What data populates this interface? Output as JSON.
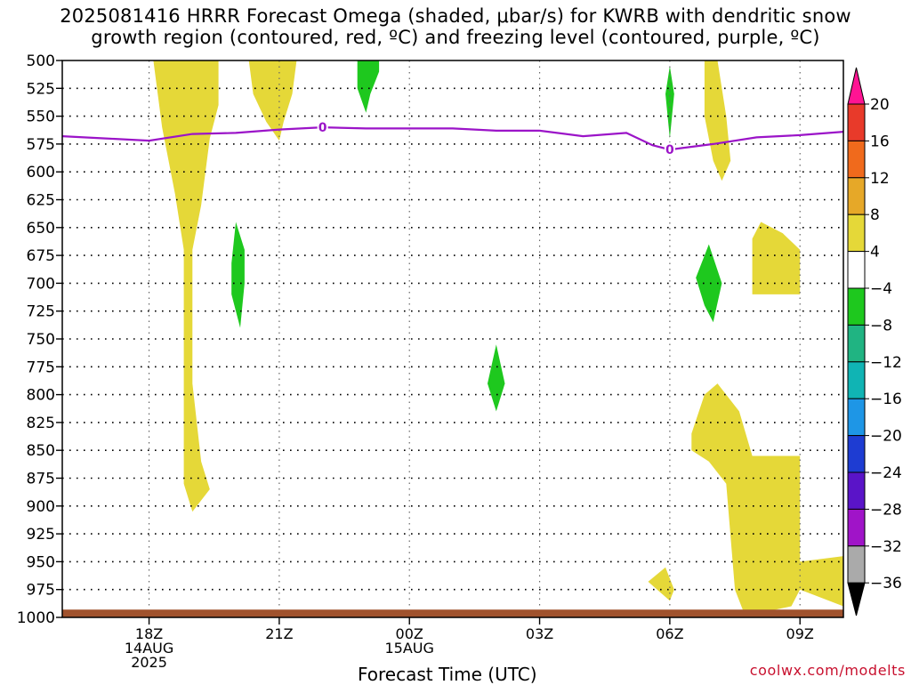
{
  "title": {
    "line1": "2025081416 HRRR Forecast Omega (shaded, μbar/s) for KWRB with dendritic snow",
    "line2": "growth region (contoured, red, ºC) and freezing level (contoured, purple, ºC)"
  },
  "xaxis_title": "Forecast Time (UTC)",
  "credit": "coolwx.com/modelts",
  "chart_data": {
    "type": "heatmap",
    "x_range_hours_utc_from_14aug_00z": [
      16.0,
      34.0
    ],
    "y_range_mb": [
      1000,
      500
    ],
    "y_ticks": [
      500,
      525,
      550,
      575,
      600,
      625,
      650,
      675,
      700,
      725,
      750,
      775,
      800,
      825,
      850,
      875,
      900,
      925,
      950,
      975,
      1000
    ],
    "x_ticks": [
      {
        "hour": 18,
        "label": [
          "18Z",
          "14AUG",
          "2025"
        ]
      },
      {
        "hour": 21,
        "label": [
          "21Z"
        ]
      },
      {
        "hour": 24,
        "label": [
          "00Z",
          "15AUG"
        ]
      },
      {
        "hour": 27,
        "label": [
          "03Z"
        ]
      },
      {
        "hour": 30,
        "label": [
          "06Z"
        ]
      },
      {
        "hour": 33,
        "label": [
          "09Z"
        ]
      }
    ],
    "grid": true,
    "colorbar": {
      "levels": [
        20,
        16,
        12,
        8,
        4,
        -4,
        -8,
        -12,
        -16,
        -20,
        -24,
        -28,
        -32,
        -36
      ],
      "colors": [
        "#ff1493",
        "#e83a2a",
        "#f06a1c",
        "#e6a828",
        "#e5d838",
        "#ffffff",
        "#1ec81e",
        "#20b482",
        "#10b4b4",
        "#1e96e6",
        "#1e3cd2",
        "#5a14c8",
        "#a014c8",
        "#aaaaaa",
        "#000000"
      ]
    },
    "freezing_level": {
      "label": "0",
      "color": "#9b14c8",
      "points": [
        [
          16.0,
          568
        ],
        [
          17.0,
          570
        ],
        [
          18.0,
          572
        ],
        [
          19.0,
          566
        ],
        [
          20.0,
          565
        ],
        [
          21.0,
          562
        ],
        [
          22.0,
          560
        ],
        [
          23.0,
          561
        ],
        [
          24.0,
          561
        ],
        [
          25.0,
          561
        ],
        [
          26.0,
          563
        ],
        [
          27.0,
          563
        ],
        [
          28.0,
          568
        ],
        [
          29.0,
          565
        ],
        [
          29.6,
          576
        ],
        [
          30.0,
          580
        ],
        [
          31.0,
          575
        ],
        [
          32.0,
          569
        ],
        [
          33.0,
          567
        ],
        [
          34.0,
          564
        ]
      ]
    },
    "omega_regions": [
      {
        "color": "#e5d838",
        "value_range": [
          4,
          8
        ],
        "polygon": [
          [
            18.1,
            500
          ],
          [
            19.6,
            500
          ],
          [
            19.6,
            540
          ],
          [
            19.4,
            570
          ],
          [
            19.2,
            630
          ],
          [
            19.0,
            670
          ],
          [
            19.0,
            790
          ],
          [
            19.2,
            860
          ],
          [
            19.4,
            885
          ],
          [
            19.0,
            905
          ],
          [
            18.8,
            880
          ],
          [
            18.8,
            670
          ],
          [
            18.6,
            620
          ],
          [
            18.3,
            560
          ]
        ]
      },
      {
        "color": "#e5d838",
        "value_range": [
          4,
          8
        ],
        "polygon": [
          [
            20.3,
            500
          ],
          [
            21.4,
            500
          ],
          [
            21.3,
            530
          ],
          [
            21.1,
            555
          ],
          [
            21.0,
            572
          ],
          [
            20.7,
            555
          ],
          [
            20.4,
            530
          ]
        ]
      },
      {
        "color": "#1ec81e",
        "value_range": [
          -8,
          -4
        ],
        "polygon": [
          [
            22.8,
            500
          ],
          [
            23.3,
            500
          ],
          [
            23.3,
            510
          ],
          [
            23.1,
            530
          ],
          [
            23.0,
            547
          ],
          [
            22.8,
            525
          ]
        ]
      },
      {
        "color": "#1ec81e",
        "value_range": [
          -8,
          -4
        ],
        "polygon": [
          [
            19.9,
            682
          ],
          [
            20.0,
            645
          ],
          [
            20.2,
            670
          ],
          [
            20.2,
            700
          ],
          [
            20.1,
            740
          ],
          [
            19.9,
            710
          ]
        ]
      },
      {
        "color": "#1ec81e",
        "value_range": [
          -8,
          -4
        ],
        "polygon": [
          [
            25.8,
            790
          ],
          [
            26.0,
            755
          ],
          [
            26.2,
            790
          ],
          [
            26.0,
            815
          ]
        ]
      },
      {
        "color": "#1ec81e",
        "value_range": [
          -8,
          -4
        ],
        "polygon": [
          [
            29.9,
            530
          ],
          [
            30.0,
            505
          ],
          [
            30.1,
            530
          ],
          [
            30.0,
            570
          ]
        ]
      },
      {
        "color": "#e5d838",
        "value_range": [
          4,
          8
        ],
        "polygon": [
          [
            30.8,
            500
          ],
          [
            31.1,
            500
          ],
          [
            31.3,
            550
          ],
          [
            31.4,
            590
          ],
          [
            31.2,
            608
          ],
          [
            31.0,
            590
          ],
          [
            30.8,
            550
          ]
        ]
      },
      {
        "color": "#1ec81e",
        "value_range": [
          -8,
          -4
        ],
        "polygon": [
          [
            30.6,
            695
          ],
          [
            30.9,
            665
          ],
          [
            31.2,
            700
          ],
          [
            31.0,
            735
          ],
          [
            30.8,
            720
          ]
        ]
      },
      {
        "color": "#e5d838",
        "value_range": [
          4,
          8
        ],
        "polygon": [
          [
            31.9,
            660
          ],
          [
            32.1,
            645
          ],
          [
            32.6,
            655
          ],
          [
            33.0,
            670
          ],
          [
            33.0,
            710
          ],
          [
            31.9,
            710
          ]
        ]
      },
      {
        "color": "#e5d838",
        "value_range": [
          4,
          8
        ],
        "polygon": [
          [
            30.5,
            835
          ],
          [
            30.8,
            800
          ],
          [
            31.1,
            790
          ],
          [
            31.6,
            815
          ],
          [
            31.9,
            855
          ],
          [
            33.0,
            855
          ],
          [
            33.0,
            950
          ],
          [
            34.0,
            945
          ],
          [
            34.0,
            990
          ],
          [
            33.0,
            975
          ],
          [
            32.8,
            990
          ],
          [
            32.2,
            995
          ],
          [
            31.7,
            995
          ],
          [
            31.5,
            975
          ],
          [
            31.3,
            880
          ],
          [
            30.9,
            860
          ],
          [
            30.5,
            850
          ]
        ]
      },
      {
        "color": "#e5d838",
        "value_range": [
          4,
          8
        ],
        "polygon": [
          [
            29.5,
            968
          ],
          [
            29.9,
            955
          ],
          [
            30.1,
            975
          ],
          [
            30.0,
            985
          ]
        ]
      }
    ],
    "surface": {
      "color": "#a0522d",
      "mb_range": [
        993,
        1000
      ]
    }
  }
}
